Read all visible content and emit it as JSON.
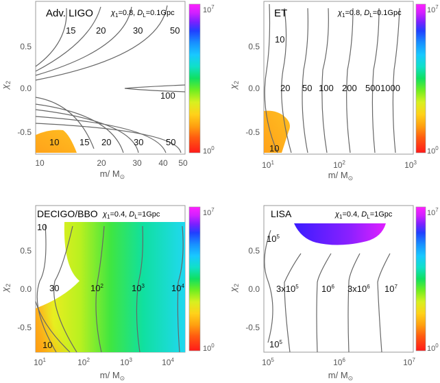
{
  "chart_data": [
    {
      "type": "contour",
      "title": "Adv. LIGO",
      "params": [
        "χ",
        "1",
        "=0.8, ",
        "D",
        "L",
        "=0.1Gpc"
      ],
      "xlabel": "m/ M",
      "ylabel": "χ",
      "ylabel_sub": "2",
      "x_scale": "log",
      "xlim": [
        9.5,
        52
      ],
      "ylim": [
        -0.85,
        0.9
      ],
      "x_ticks": [
        "10",
        "20",
        "30",
        "40",
        "50"
      ],
      "y_ticks": [
        "-0.5",
        "0.0",
        "0.5"
      ],
      "contour_labels": [
        "15",
        "20",
        "30",
        "50",
        "100",
        "10",
        "15",
        "20",
        "30",
        "50"
      ],
      "colorbar": {
        "min_label": "10",
        "min_exp": "0",
        "max_label": "10",
        "max_exp": "7",
        "colors": [
          "#ff2020",
          "#ff9900",
          "#ffff00",
          "#00dd66",
          "#00ccff",
          "#2030ff",
          "#ff20ff"
        ]
      }
    },
    {
      "type": "contour",
      "title": "ET",
      "params": [
        "χ",
        "1",
        "=0.8, ",
        "D",
        "L",
        "=0.1Gpc"
      ],
      "xlabel": "m/ M",
      "ylabel": "χ",
      "ylabel_sub": "2",
      "x_scale": "log",
      "xlim": [
        9,
        1000
      ],
      "ylim": [
        -0.85,
        0.9
      ],
      "x_ticks": [
        {
          "base": "10",
          "exp": "1"
        },
        {
          "base": "10",
          "exp": "2"
        },
        {
          "base": "10",
          "exp": "3"
        }
      ],
      "y_ticks": [
        "-0.5",
        "0.0",
        "0.5"
      ],
      "contour_labels": [
        "10",
        "20",
        "50",
        "100",
        "200",
        "500",
        "1000",
        "10"
      ],
      "colorbar": {
        "min_label": "10",
        "min_exp": "0",
        "max_label": "10",
        "max_exp": "7"
      }
    },
    {
      "type": "contour",
      "title": "DECIGO/BBO",
      "params": [
        "χ",
        "1",
        "=0.4, ",
        "D",
        "L",
        "=1Gpc"
      ],
      "xlabel": "m/ M",
      "ylabel": "χ",
      "ylabel_sub": "2",
      "x_scale": "log",
      "xlim": [
        10,
        25000
      ],
      "ylim": [
        -0.85,
        0.9
      ],
      "x_ticks": [
        {
          "base": "10",
          "exp": "1"
        },
        {
          "base": "10",
          "exp": "2"
        },
        {
          "base": "10",
          "exp": "3"
        },
        {
          "base": "10",
          "exp": "4"
        }
      ],
      "y_ticks": [
        "-0.5",
        "0.0",
        "0.5"
      ],
      "contour_labels": [
        "10",
        "30",
        "10",
        "10",
        "10",
        "10"
      ],
      "contour_label_exps": [
        "",
        "",
        "2",
        "3",
        "4",
        ""
      ],
      "colorbar": {
        "min_label": "10",
        "min_exp": "0",
        "max_label": "10",
        "max_exp": "7"
      }
    },
    {
      "type": "contour",
      "title": "LISA",
      "params": [
        "χ",
        "1",
        "=0.4, ",
        "D",
        "L",
        "=1Gpc"
      ],
      "xlabel": "m/ M",
      "ylabel": "χ",
      "ylabel_sub": "2",
      "x_scale": "log",
      "xlim": [
        100000,
        10000000
      ],
      "ylim": [
        -0.85,
        0.9
      ],
      "x_ticks": [
        {
          "base": "10",
          "exp": "5"
        },
        {
          "base": "10",
          "exp": "6"
        },
        {
          "base": "10",
          "exp": "7"
        }
      ],
      "y_ticks": [
        "-0.5",
        "0.0",
        "0.5"
      ],
      "contour_labels": [
        "10",
        "3x10",
        "10",
        "3x10",
        "10",
        "10"
      ],
      "contour_label_exps": [
        "5",
        "5",
        "6",
        "6",
        "7",
        "5"
      ],
      "colorbar": {
        "min_label": "10",
        "min_exp": "0",
        "max_label": "10",
        "max_exp": "7"
      }
    }
  ]
}
